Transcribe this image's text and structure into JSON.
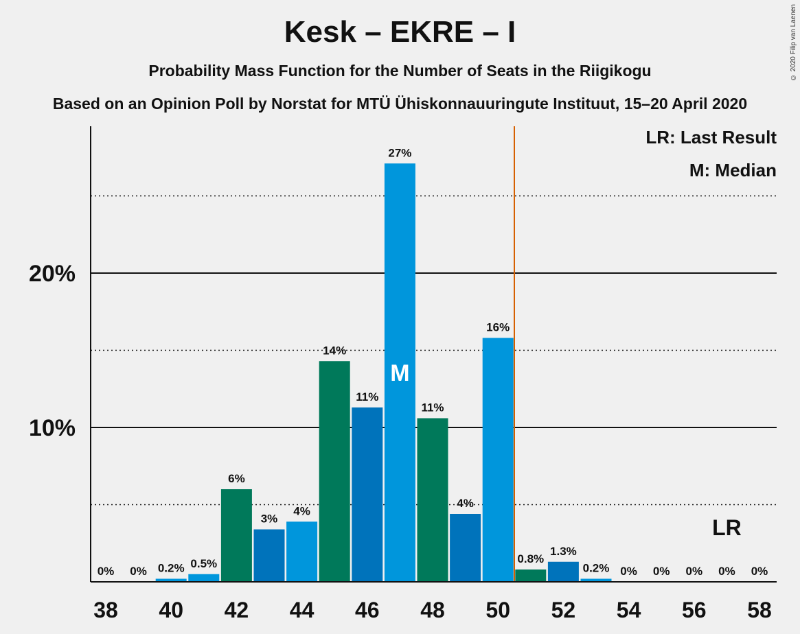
{
  "title": "Kesk – EKRE – I",
  "subtitle": "Probability Mass Function for the Number of Seats in the Riigikogu",
  "source": "Based on an Opinion Poll by Norstat for MTÜ Ühiskonnauuringute Instituut, 15–20 April 2020",
  "credit": "© 2020 Filip van Laenen",
  "legend": {
    "last_result": "LR: Last Result",
    "median": "M: Median"
  },
  "markers": {
    "median_label": "M",
    "last_result_label": "LR"
  },
  "colors": {
    "teal": "#00795a",
    "blue": "#0073bb",
    "light_blue": "#0096dc",
    "lr_line": "#d66000"
  },
  "chart_data": {
    "type": "bar",
    "x": [
      38,
      39,
      40,
      41,
      42,
      43,
      44,
      45,
      46,
      47,
      48,
      49,
      50,
      51,
      52,
      53,
      54,
      55,
      56,
      57,
      58
    ],
    "values": [
      0,
      0,
      0.2,
      0.5,
      6,
      3.4,
      3.9,
      14.3,
      11.3,
      27.1,
      10.6,
      4.4,
      15.8,
      0.8,
      1.3,
      0.2,
      0,
      0,
      0,
      0,
      0
    ],
    "labels": [
      "0%",
      "0%",
      "0.2%",
      "0.5%",
      "6%",
      "3%",
      "4%",
      "14%",
      "11%",
      "27%",
      "11%",
      "4%",
      "16%",
      "0.8%",
      "1.3%",
      "0.2%",
      "0%",
      "0%",
      "0%",
      "0%",
      "0%"
    ],
    "colors": [
      "teal",
      "blue",
      "light_blue",
      "light_blue",
      "teal",
      "blue",
      "light_blue",
      "teal",
      "blue",
      "light_blue",
      "teal",
      "blue",
      "light_blue",
      "teal",
      "blue",
      "light_blue",
      "teal",
      "blue",
      "light_blue",
      "teal",
      "blue"
    ],
    "xticks": [
      38,
      40,
      42,
      44,
      46,
      48,
      50,
      52,
      54,
      56,
      58
    ],
    "yticks": [
      10,
      20
    ],
    "ytick_labels": [
      "10%",
      "20%"
    ],
    "minor_grid": [
      5,
      15,
      25
    ],
    "ylim": [
      0,
      29.5
    ],
    "median": 47,
    "last_result": 57,
    "majority_line": 50.5
  }
}
